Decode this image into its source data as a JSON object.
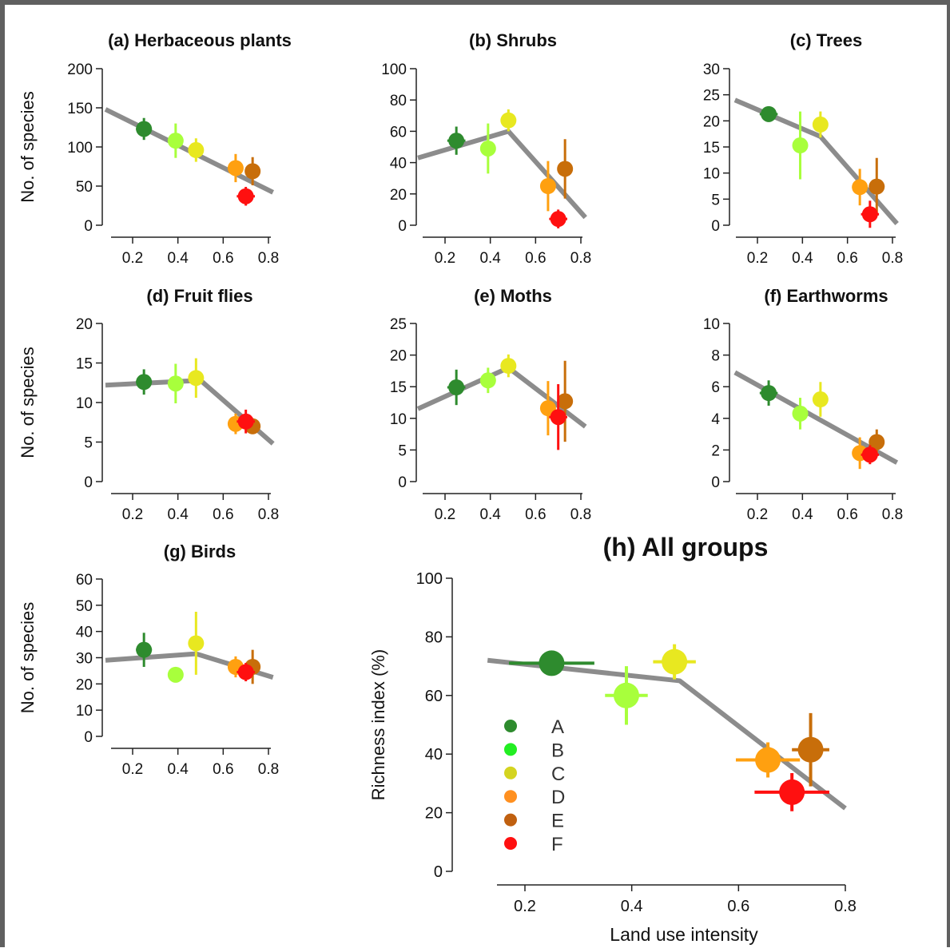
{
  "colors": {
    "A": "#2e8b2e",
    "B": "#a8ff3c",
    "C": "#e8e820",
    "D": "#ffa010",
    "E": "#c86e0a",
    "F": "#ff1010",
    "fit": "#8c8c8c"
  },
  "legend": {
    "entries": [
      {
        "label": "A",
        "color": "#2e8b2e"
      },
      {
        "label": "B",
        "color": "#22ee22"
      },
      {
        "label": "C",
        "color": "#d4d420"
      },
      {
        "label": "D",
        "color": "#ff9020"
      },
      {
        "label": "E",
        "color": "#c06010"
      },
      {
        "label": "F",
        "color": "#ff1010"
      }
    ]
  },
  "chart_data": [
    {
      "id": "a",
      "type": "scatter",
      "title": "(a) Herbaceous plants",
      "xlabel": "",
      "ylabel": "No. of species",
      "xlim": [
        0.2,
        0.8
      ],
      "ylim": [
        0,
        200
      ],
      "xticks": [
        "0.2",
        "0.4",
        "0.6",
        "0.8"
      ],
      "yticks": [
        "0",
        "50",
        "100",
        "150",
        "200"
      ],
      "points": [
        {
          "site": "A",
          "x": 0.25,
          "y": 123,
          "xerr": 0.035,
          "yerr": 14
        },
        {
          "site": "B",
          "x": 0.39,
          "y": 108,
          "xerr": 0.02,
          "yerr": 22
        },
        {
          "site": "C",
          "x": 0.48,
          "y": 96,
          "xerr": 0.03,
          "yerr": 15
        },
        {
          "site": "D",
          "x": 0.655,
          "y": 73,
          "xerr": 0.03,
          "yerr": 18
        },
        {
          "site": "E",
          "x": 0.73,
          "y": 69,
          "xerr": 0.02,
          "yerr": 18
        },
        {
          "site": "F",
          "x": 0.7,
          "y": 37,
          "xerr": 0.04,
          "yerr": 12
        }
      ],
      "fit": [
        [
          0.08,
          148
        ],
        [
          0.82,
          42
        ]
      ]
    },
    {
      "id": "b",
      "type": "scatter",
      "title": "(b) Shrubs",
      "xlabel": "",
      "ylabel": "",
      "xlim": [
        0.2,
        0.8
      ],
      "ylim": [
        0,
        100
      ],
      "xticks": [
        "0.2",
        "0.4",
        "0.6",
        "0.8"
      ],
      "yticks": [
        "0",
        "20",
        "40",
        "60",
        "80",
        "100"
      ],
      "points": [
        {
          "site": "A",
          "x": 0.25,
          "y": 54,
          "xerr": 0.04,
          "yerr": 9
        },
        {
          "site": "B",
          "x": 0.39,
          "y": 49,
          "xerr": 0.02,
          "yerr": 16
        },
        {
          "site": "C",
          "x": 0.48,
          "y": 67,
          "xerr": 0.03,
          "yerr": 7
        },
        {
          "site": "D",
          "x": 0.655,
          "y": 25,
          "xerr": 0.03,
          "yerr": 16
        },
        {
          "site": "E",
          "x": 0.73,
          "y": 36,
          "xerr": 0.02,
          "yerr": 19
        },
        {
          "site": "F",
          "x": 0.7,
          "y": 4,
          "xerr": 0.04,
          "yerr": 6
        }
      ],
      "fit": [
        [
          0.08,
          43
        ],
        [
          0.48,
          60
        ],
        [
          0.82,
          5
        ]
      ]
    },
    {
      "id": "c",
      "type": "scatter",
      "title": "(c) Trees",
      "xlabel": "",
      "ylabel": "",
      "xlim": [
        0.2,
        0.8
      ],
      "ylim": [
        0,
        30
      ],
      "xticks": [
        "0.2",
        "0.4",
        "0.6",
        "0.8"
      ],
      "yticks": [
        "0",
        "5",
        "10",
        "15",
        "20",
        "25",
        "30"
      ],
      "points": [
        {
          "site": "A",
          "x": 0.25,
          "y": 21.3,
          "xerr": 0.04,
          "yerr": 1.5
        },
        {
          "site": "B",
          "x": 0.39,
          "y": 15.3,
          "xerr": 0.02,
          "yerr": 6.5
        },
        {
          "site": "C",
          "x": 0.48,
          "y": 19.3,
          "xerr": 0.03,
          "yerr": 2.5
        },
        {
          "site": "D",
          "x": 0.655,
          "y": 7.3,
          "xerr": 0.03,
          "yerr": 3.5
        },
        {
          "site": "E",
          "x": 0.73,
          "y": 7.4,
          "xerr": 0.02,
          "yerr": 5.5
        },
        {
          "site": "F",
          "x": 0.7,
          "y": 2.1,
          "xerr": 0.04,
          "yerr": 2.6
        }
      ],
      "fit": [
        [
          0.1,
          24
        ],
        [
          0.48,
          17
        ],
        [
          0.82,
          0.3
        ]
      ]
    },
    {
      "id": "d",
      "type": "scatter",
      "title": "(d) Fruit flies",
      "xlabel": "",
      "ylabel": "No. of species",
      "xlim": [
        0.2,
        0.8
      ],
      "ylim": [
        0,
        20
      ],
      "xticks": [
        "0.2",
        "0.4",
        "0.6",
        "0.8"
      ],
      "yticks": [
        "0",
        "5",
        "10",
        "15",
        "20"
      ],
      "points": [
        {
          "site": "A",
          "x": 0.25,
          "y": 12.6,
          "xerr": 0.035,
          "yerr": 1.6
        },
        {
          "site": "B",
          "x": 0.39,
          "y": 12.4,
          "xerr": 0.02,
          "yerr": 2.5
        },
        {
          "site": "C",
          "x": 0.48,
          "y": 13.1,
          "xerr": 0.03,
          "yerr": 2.5
        },
        {
          "site": "D",
          "x": 0.655,
          "y": 7.3,
          "xerr": 0.03,
          "yerr": 1.3
        },
        {
          "site": "E",
          "x": 0.73,
          "y": 7.0,
          "xerr": 0.02,
          "yerr": 1.0
        },
        {
          "site": "F",
          "x": 0.7,
          "y": 7.6,
          "xerr": 0.04,
          "yerr": 1.5
        }
      ],
      "fit": [
        [
          0.08,
          12.2
        ],
        [
          0.5,
          12.8
        ],
        [
          0.82,
          4.8
        ]
      ]
    },
    {
      "id": "e",
      "type": "scatter",
      "title": "(e) Moths",
      "xlabel": "",
      "ylabel": "",
      "xlim": [
        0.2,
        0.8
      ],
      "ylim": [
        0,
        25
      ],
      "xticks": [
        "0.2",
        "0.4",
        "0.6",
        "0.8"
      ],
      "yticks": [
        "0",
        "5",
        "10",
        "15",
        "20",
        "25"
      ],
      "points": [
        {
          "site": "A",
          "x": 0.25,
          "y": 14.9,
          "xerr": 0.04,
          "yerr": 2.8
        },
        {
          "site": "B",
          "x": 0.39,
          "y": 16.0,
          "xerr": 0.02,
          "yerr": 2.0
        },
        {
          "site": "C",
          "x": 0.48,
          "y": 18.3,
          "xerr": 0.03,
          "yerr": 1.8
        },
        {
          "site": "D",
          "x": 0.655,
          "y": 11.6,
          "xerr": 0.03,
          "yerr": 4.3
        },
        {
          "site": "E",
          "x": 0.73,
          "y": 12.7,
          "xerr": 0.02,
          "yerr": 6.4
        },
        {
          "site": "F",
          "x": 0.7,
          "y": 10.2,
          "xerr": 0.04,
          "yerr": 5.2
        }
      ],
      "fit": [
        [
          0.08,
          11.5
        ],
        [
          0.48,
          18
        ],
        [
          0.82,
          8.7
        ]
      ]
    },
    {
      "id": "f",
      "type": "scatter",
      "title": "(f) Earthworms",
      "xlabel": "",
      "ylabel": "",
      "xlim": [
        0.2,
        0.8
      ],
      "ylim": [
        0,
        10
      ],
      "xticks": [
        "0.2",
        "0.4",
        "0.6",
        "0.8"
      ],
      "yticks": [
        "0",
        "2",
        "4",
        "6",
        "8",
        "10"
      ],
      "points": [
        {
          "site": "A",
          "x": 0.25,
          "y": 5.6,
          "xerr": 0.04,
          "yerr": 0.8
        },
        {
          "site": "B",
          "x": 0.39,
          "y": 4.3,
          "xerr": 0.02,
          "yerr": 1.0
        },
        {
          "site": "C",
          "x": 0.48,
          "y": 5.2,
          "xerr": 0.03,
          "yerr": 1.1
        },
        {
          "site": "D",
          "x": 0.655,
          "y": 1.8,
          "xerr": 0.03,
          "yerr": 1.0
        },
        {
          "site": "E",
          "x": 0.73,
          "y": 2.5,
          "xerr": 0.02,
          "yerr": 0.8
        },
        {
          "site": "F",
          "x": 0.7,
          "y": 1.7,
          "xerr": 0.04,
          "yerr": 0.6
        }
      ],
      "fit": [
        [
          0.1,
          6.9
        ],
        [
          0.82,
          1.2
        ]
      ]
    },
    {
      "id": "g",
      "type": "scatter",
      "title": "(g) Birds",
      "xlabel": "",
      "ylabel": "No. of species",
      "xlim": [
        0.2,
        0.8
      ],
      "ylim": [
        0,
        60
      ],
      "xticks": [
        "0.2",
        "0.4",
        "0.6",
        "0.8"
      ],
      "yticks": [
        "0",
        "10",
        "20",
        "30",
        "40",
        "50",
        "60"
      ],
      "points": [
        {
          "site": "A",
          "x": 0.25,
          "y": 33,
          "xerr": 0.035,
          "yerr": 6.5
        },
        {
          "site": "B",
          "x": 0.39,
          "y": 23.5,
          "xerr": 0.02,
          "yerr": 2.5
        },
        {
          "site": "C",
          "x": 0.48,
          "y": 35.5,
          "xerr": 0.03,
          "yerr": 12
        },
        {
          "site": "D",
          "x": 0.655,
          "y": 26.5,
          "xerr": 0.03,
          "yerr": 4
        },
        {
          "site": "E",
          "x": 0.73,
          "y": 26.5,
          "xerr": 0.02,
          "yerr": 6.5
        },
        {
          "site": "F",
          "x": 0.7,
          "y": 24.5,
          "xerr": 0.04,
          "yerr": 3.5
        }
      ],
      "fit": [
        [
          0.08,
          29
        ],
        [
          0.48,
          31.5
        ],
        [
          0.82,
          22.5
        ]
      ]
    },
    {
      "id": "h",
      "type": "scatter",
      "title": "(h) All groups",
      "xlabel": "Land use intensity",
      "ylabel": "Richness index (%)",
      "xlim": [
        0.2,
        0.8
      ],
      "ylim": [
        0,
        100
      ],
      "xticks": [
        "0.2",
        "0.4",
        "0.6",
        "0.8"
      ],
      "yticks": [
        "0",
        "20",
        "40",
        "60",
        "80",
        "100"
      ],
      "points": [
        {
          "site": "A",
          "x": 0.25,
          "y": 71,
          "xerr": 0.08,
          "yerr": 3
        },
        {
          "site": "B",
          "x": 0.39,
          "y": 60,
          "xerr": 0.04,
          "yerr": 10
        },
        {
          "site": "C",
          "x": 0.48,
          "y": 71.5,
          "xerr": 0.04,
          "yerr": 6
        },
        {
          "site": "D",
          "x": 0.655,
          "y": 38,
          "xerr": 0.06,
          "yerr": 6
        },
        {
          "site": "E",
          "x": 0.735,
          "y": 41.5,
          "xerr": 0.035,
          "yerr": 12.5
        },
        {
          "site": "F",
          "x": 0.7,
          "y": 27,
          "xerr": 0.07,
          "yerr": 6.5
        }
      ],
      "fit": [
        [
          0.13,
          72
        ],
        [
          0.49,
          65
        ],
        [
          0.8,
          21.5
        ]
      ]
    }
  ]
}
